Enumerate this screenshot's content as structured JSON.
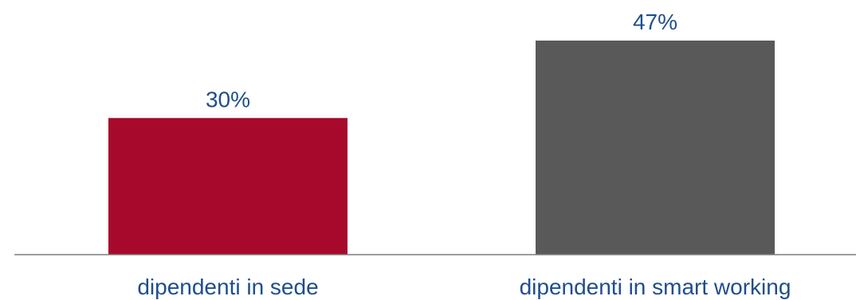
{
  "chart_data": {
    "type": "bar",
    "categories": [
      "dipendenti in sede",
      "dipendenti in smart working"
    ],
    "values": [
      30,
      47
    ],
    "value_labels": [
      "30%",
      "47%"
    ],
    "title": "",
    "xlabel": "",
    "ylabel": "",
    "ylim": [
      0,
      50
    ],
    "grid": false,
    "legend": "none",
    "colors": {
      "bars": [
        "#a6092b",
        "#595959"
      ],
      "value_text": "#1f4e8c",
      "category_text": "#1f4e8c",
      "axis": "#7f7f7f"
    }
  }
}
